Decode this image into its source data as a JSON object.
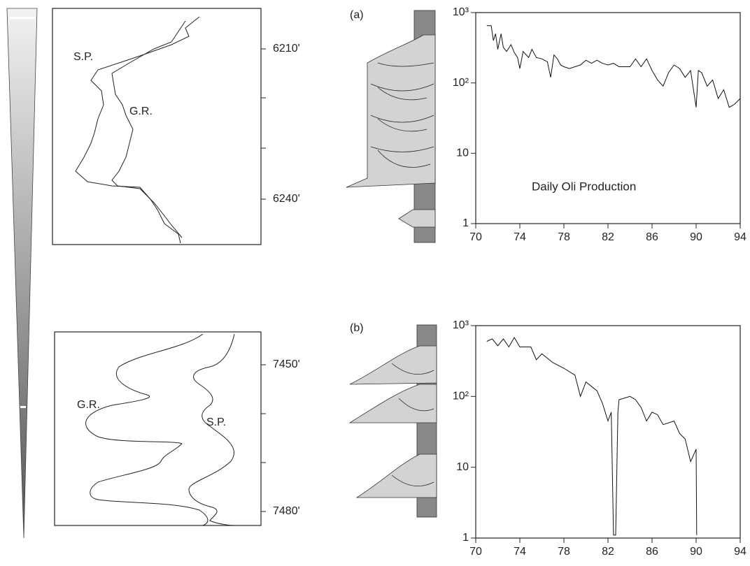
{
  "chart_data": [
    {
      "type": "line",
      "title": "(a)",
      "annotation": "Daily Oli Production",
      "log_y": true,
      "color": "#111111",
      "xlim": [
        70,
        94
      ],
      "xticks": [
        70,
        74,
        78,
        82,
        86,
        90,
        94
      ],
      "ylim": [
        1,
        1000
      ],
      "yticks": [
        1,
        10,
        {
          "value": 100,
          "label": "10²"
        },
        {
          "value": 1000,
          "label": "10³"
        }
      ],
      "x": [
        71.0,
        71.4,
        71.6,
        71.8,
        72.0,
        72.3,
        72.5,
        72.8,
        73.2,
        73.5,
        73.8,
        74.0,
        74.3,
        74.8,
        75.1,
        75.5,
        76.0,
        76.5,
        76.8,
        77.1,
        77.4,
        77.7,
        78.0,
        78.5,
        79.0,
        79.5,
        80.0,
        80.5,
        81.0,
        81.5,
        82.0,
        82.5,
        83.0,
        84.0,
        84.5,
        85.0,
        85.5,
        86.0,
        86.5,
        87.0,
        87.5,
        88.0,
        88.5,
        89.0,
        89.5,
        90.0,
        90.2,
        90.5,
        91.0,
        91.5,
        92.0,
        92.5,
        93.0,
        93.5,
        94.0
      ],
      "values": [
        650,
        650,
        400,
        500,
        300,
        500,
        320,
        280,
        350,
        270,
        230,
        160,
        280,
        230,
        300,
        230,
        220,
        200,
        120,
        250,
        220,
        180,
        170,
        160,
        170,
        180,
        210,
        190,
        210,
        190,
        180,
        190,
        170,
        170,
        220,
        170,
        220,
        150,
        110,
        90,
        140,
        180,
        160,
        120,
        150,
        45,
        150,
        140,
        90,
        110,
        60,
        80,
        45,
        50,
        60
      ]
    },
    {
      "type": "line",
      "title": "(b)",
      "log_y": true,
      "color": "#111111",
      "xlim": [
        70,
        94
      ],
      "xticks": [
        70,
        74,
        78,
        82,
        86,
        90,
        94
      ],
      "ylim": [
        1,
        1000
      ],
      "yticks": [
        1,
        10,
        {
          "value": 100,
          "label": "10²"
        },
        {
          "value": 1000,
          "label": "10³"
        }
      ],
      "x": [
        71.0,
        71.5,
        72.0,
        72.5,
        73.0,
        73.5,
        74.0,
        75.0,
        75.5,
        76.0,
        77.0,
        78.0,
        79.0,
        79.5,
        80.0,
        81.0,
        81.5,
        82.0,
        82.3,
        82.5,
        82.7,
        82.9,
        83.0,
        84.0,
        84.5,
        85.0,
        85.5,
        86.0,
        86.5,
        87.0,
        88.0,
        88.5,
        89.0,
        89.5,
        90.0,
        90.05
      ],
      "values": [
        600,
        650,
        520,
        650,
        500,
        680,
        500,
        500,
        330,
        400,
        300,
        250,
        200,
        100,
        160,
        120,
        80,
        45,
        60,
        1.1,
        1.1,
        60,
        90,
        100,
        90,
        70,
        45,
        60,
        55,
        40,
        45,
        30,
        25,
        12,
        18,
        1.1
      ]
    }
  ],
  "well_logs": [
    {
      "curve_labels": [
        "S.P.",
        "G.R."
      ],
      "depth_labels": [
        "6210'",
        "6240'"
      ]
    },
    {
      "curve_labels": [
        "G.R.",
        "S.P."
      ],
      "depth_labels": [
        "7450'",
        "7480'"
      ]
    }
  ]
}
